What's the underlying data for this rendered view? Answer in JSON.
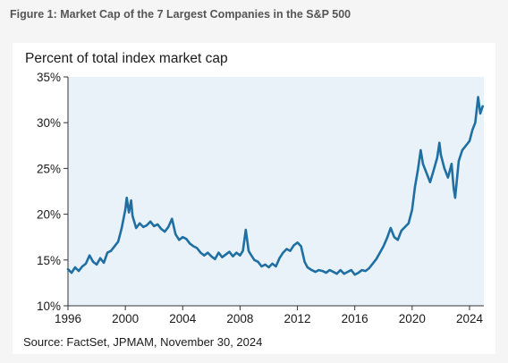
{
  "figure": {
    "title": "Figure 1: Market Cap of the 7 Largest Companies in the S&P 500"
  },
  "chart_data": {
    "type": "line",
    "subtitle": "Percent of total index market cap",
    "source": "Source: FactSet, JPMAM, November 30, 2024",
    "xlim": [
      1996,
      2025
    ],
    "ylim": [
      10,
      35
    ],
    "x_ticks": [
      1996,
      2000,
      2004,
      2008,
      2012,
      2016,
      2020,
      2024
    ],
    "y_ticks": [
      10,
      15,
      20,
      25,
      30,
      35
    ],
    "y_tick_labels": [
      "10%",
      "15%",
      "20%",
      "25%",
      "30%",
      "35%"
    ],
    "grid": false,
    "line_color": "#1f6fa3",
    "plot_background": "#e9f2f9",
    "series": [
      {
        "x": [
          1996.0,
          1996.25,
          1996.5,
          1996.75,
          1997.0,
          1997.25,
          1997.5,
          1997.75,
          1998.0,
          1998.25,
          1998.5,
          1998.75,
          1999.0,
          1999.25,
          1999.5,
          1999.75,
          2000.0,
          2000.1,
          2000.25,
          2000.4,
          2000.5,
          2000.75,
          2001.0,
          2001.25,
          2001.5,
          2001.75,
          2002.0,
          2002.25,
          2002.5,
          2002.75,
          2003.0,
          2003.25,
          2003.5,
          2003.75,
          2004.0,
          2004.25,
          2004.5,
          2004.75,
          2005.0,
          2005.25,
          2005.5,
          2005.75,
          2006.0,
          2006.25,
          2006.5,
          2006.75,
          2007.0,
          2007.25,
          2007.5,
          2007.75,
          2008.0,
          2008.2,
          2008.4,
          2008.6,
          2008.75,
          2009.0,
          2009.25,
          2009.5,
          2009.75,
          2010.0,
          2010.25,
          2010.5,
          2010.75,
          2011.0,
          2011.25,
          2011.5,
          2011.75,
          2012.0,
          2012.25,
          2012.5,
          2012.7,
          2013.0,
          2013.25,
          2013.5,
          2013.75,
          2014.0,
          2014.25,
          2014.5,
          2014.75,
          2015.0,
          2015.25,
          2015.5,
          2015.75,
          2016.0,
          2016.25,
          2016.5,
          2016.75,
          2017.0,
          2017.25,
          2017.5,
          2017.75,
          2018.0,
          2018.25,
          2018.5,
          2018.75,
          2019.0,
          2019.25,
          2019.5,
          2019.75,
          2020.0,
          2020.2,
          2020.4,
          2020.6,
          2020.75,
          2021.0,
          2021.25,
          2021.5,
          2021.75,
          2021.9,
          2022.0,
          2022.25,
          2022.5,
          2022.75,
          2022.9,
          2023.0,
          2023.25,
          2023.5,
          2023.75,
          2024.0,
          2024.2,
          2024.4,
          2024.6,
          2024.75,
          2024.92
        ],
        "y": [
          14.0,
          13.6,
          14.2,
          13.8,
          14.3,
          14.6,
          15.5,
          14.8,
          14.5,
          15.2,
          14.7,
          15.8,
          16.0,
          16.5,
          17.0,
          18.5,
          20.5,
          21.8,
          20.2,
          21.5,
          19.8,
          18.5,
          19.0,
          18.6,
          18.8,
          19.2,
          18.7,
          18.9,
          18.4,
          18.1,
          18.6,
          19.5,
          17.8,
          17.2,
          17.5,
          17.3,
          16.8,
          16.5,
          16.3,
          15.8,
          15.5,
          15.8,
          15.4,
          15.1,
          15.8,
          15.3,
          15.6,
          15.9,
          15.4,
          15.8,
          15.5,
          16.0,
          18.3,
          16.0,
          15.6,
          15.0,
          14.8,
          14.3,
          14.5,
          14.2,
          14.6,
          14.3,
          15.2,
          15.8,
          16.2,
          16.0,
          16.6,
          16.9,
          16.5,
          14.8,
          14.2,
          13.9,
          13.7,
          13.9,
          13.8,
          13.6,
          13.9,
          13.7,
          13.5,
          13.9,
          13.5,
          13.7,
          13.9,
          13.4,
          13.6,
          13.9,
          13.8,
          14.1,
          14.6,
          15.1,
          15.8,
          16.5,
          17.4,
          18.5,
          17.5,
          17.2,
          18.2,
          18.6,
          19.0,
          20.5,
          23.0,
          24.8,
          27.0,
          25.5,
          24.5,
          23.5,
          24.8,
          26.2,
          27.8,
          26.5,
          25.0,
          24.0,
          25.5,
          22.8,
          21.8,
          25.8,
          27.0,
          27.5,
          28.0,
          29.2,
          30.0,
          32.8,
          31.0,
          31.8
        ]
      }
    ]
  }
}
